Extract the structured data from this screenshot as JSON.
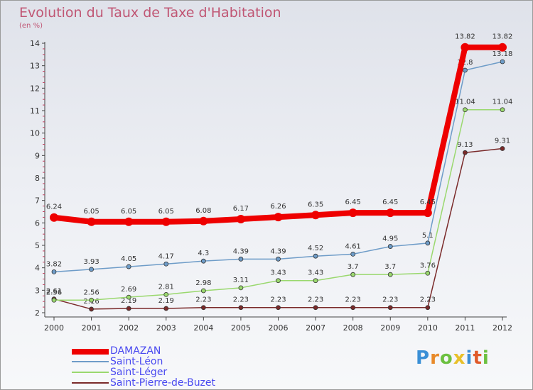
{
  "title": "Evolution du Taux de Taxe d'Habitation",
  "subtitle": "(en %)",
  "logo": "Proxiti",
  "chart_data": {
    "type": "line",
    "title": "Evolution du Taux de Taxe d'Habitation",
    "ylabel": "(en %)",
    "xlabel": "",
    "x": [
      "2000",
      "2001",
      "2002",
      "2003",
      "2004",
      "2005",
      "2006",
      "2007",
      "2008",
      "2009",
      "2010",
      "2011",
      "2012"
    ],
    "ylim": [
      2,
      14
    ],
    "yticks": [
      2,
      3,
      4,
      5,
      6,
      7,
      8,
      9,
      10,
      11,
      12,
      13,
      14
    ],
    "series": [
      {
        "name": "DAMAZAN",
        "color": "#ee0000",
        "values": [
          6.24,
          6.05,
          6.05,
          6.05,
          6.08,
          6.17,
          6.26,
          6.35,
          6.45,
          6.45,
          6.45,
          13.82,
          13.82
        ],
        "labels": [
          "6.24",
          "6.05",
          "6.05",
          "6.05",
          "6.08",
          "6.17",
          "6.26",
          "6.35",
          "6.45",
          "6.45",
          "6.45",
          "13.82",
          "13.82"
        ]
      },
      {
        "name": "Saint-Léon",
        "color": "#6e9cc8",
        "values": [
          3.82,
          3.93,
          4.05,
          4.17,
          4.3,
          4.39,
          4.39,
          4.52,
          4.61,
          4.95,
          5.1,
          12.8,
          13.18
        ],
        "labels": [
          "3.82",
          "3.93",
          "4.05",
          "4.17",
          "4.3",
          "4.39",
          "4.39",
          "4.52",
          "4.61",
          "4.95",
          "5.1",
          "12.8",
          "13.18"
        ]
      },
      {
        "name": "Saint-Léger",
        "color": "#9ad86e",
        "values": [
          2.56,
          2.56,
          2.69,
          2.81,
          2.98,
          3.11,
          3.43,
          3.43,
          3.7,
          3.7,
          3.76,
          11.04,
          11.04
        ],
        "labels": [
          "2.56",
          "2.56",
          "2.69",
          "2.81",
          "2.98",
          "3.11",
          "3.43",
          "3.43",
          "3.7",
          "3.7",
          "3.76",
          "11.04",
          "11.04"
        ]
      },
      {
        "name": "Saint-Pierre-de-Buzet",
        "color": "#7a2a2a",
        "values": [
          2.61,
          2.16,
          2.19,
          2.19,
          2.23,
          2.23,
          2.23,
          2.23,
          2.23,
          2.23,
          2.23,
          9.13,
          9.31
        ],
        "labels": [
          "2.61",
          "2.16",
          "2.19",
          "2.19",
          "2.23",
          "2.23",
          "2.23",
          "2.23",
          "2.23",
          "2.23",
          "2.23",
          "9.13",
          "9.31"
        ]
      }
    ],
    "legend_position": "bottom-left",
    "grid": false
  },
  "legend": [
    {
      "label": "DAMAZAN",
      "color": "#ee0000"
    },
    {
      "label": "Saint-Léon",
      "color": "#6e9cc8"
    },
    {
      "label": "Saint-Léger",
      "color": "#9ad86e"
    },
    {
      "label": "Saint-Pierre-de-Buzet",
      "color": "#7a2a2a"
    }
  ]
}
